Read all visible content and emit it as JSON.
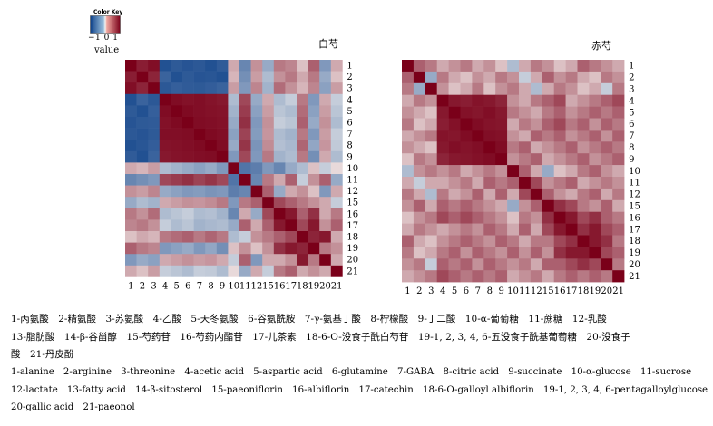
{
  "color_key": {
    "title": "Color Key",
    "ticks": "−1 0 1",
    "label": "value",
    "colors": {
      "low": "#0b3f88",
      "mid": "#f4f1ef",
      "high": "#7a0019"
    }
  },
  "chart_data": [
    {
      "type": "heatmap",
      "title": "白芍",
      "row_labels": [
        "1",
        "2",
        "3",
        "4",
        "5",
        "6",
        "7",
        "8",
        "9",
        "10",
        "11",
        "12",
        "15",
        "16",
        "17",
        "18",
        "19",
        "20",
        "21"
      ],
      "col_labels": [
        "1",
        "2",
        "3",
        "4",
        "5",
        "6",
        "7",
        "8",
        "9",
        "10",
        "11",
        "12",
        "15",
        "16",
        "17",
        "18",
        "19",
        "20",
        "21"
      ],
      "value_range": [
        -1,
        1
      ],
      "values": [
        [
          1,
          0.88,
          0.94,
          -0.9,
          -0.85,
          -0.88,
          -0.86,
          -0.9,
          -0.84,
          0.3,
          -0.6,
          0.4,
          -0.4,
          0.5,
          0.45,
          0.2,
          0.6,
          -0.5,
          0.3
        ],
        [
          0.88,
          1,
          0.85,
          -0.8,
          -0.9,
          -0.85,
          -0.88,
          -0.87,
          -0.9,
          0.25,
          -0.55,
          0.35,
          -0.3,
          0.4,
          0.5,
          0.3,
          0.5,
          -0.4,
          0.2
        ],
        [
          0.94,
          0.85,
          1,
          -0.86,
          -0.82,
          -0.84,
          -0.85,
          -0.83,
          -0.8,
          0.35,
          -0.5,
          0.45,
          -0.35,
          0.55,
          0.4,
          0.25,
          0.45,
          -0.45,
          0.35
        ],
        [
          -0.9,
          -0.8,
          -0.86,
          1,
          0.95,
          0.93,
          0.94,
          0.92,
          0.9,
          -0.3,
          0.7,
          -0.4,
          0.3,
          -0.3,
          -0.2,
          0.5,
          -0.5,
          0.3,
          -0.2
        ],
        [
          -0.85,
          -0.9,
          -0.82,
          0.95,
          1,
          0.96,
          0.94,
          0.93,
          0.92,
          -0.35,
          0.75,
          -0.45,
          0.35,
          -0.25,
          -0.3,
          0.55,
          -0.45,
          0.35,
          -0.25
        ],
        [
          -0.88,
          -0.85,
          -0.84,
          0.93,
          0.96,
          1,
          0.95,
          0.94,
          0.93,
          -0.4,
          0.8,
          -0.5,
          0.4,
          -0.2,
          -0.25,
          0.6,
          -0.4,
          0.4,
          -0.3
        ],
        [
          -0.86,
          -0.88,
          -0.85,
          0.94,
          0.94,
          0.95,
          1,
          0.96,
          0.94,
          -0.45,
          0.72,
          -0.48,
          0.38,
          -0.3,
          -0.35,
          0.5,
          -0.5,
          0.35,
          -0.2
        ],
        [
          -0.9,
          -0.87,
          -0.83,
          0.92,
          0.93,
          0.94,
          0.96,
          1,
          0.95,
          -0.4,
          0.78,
          -0.52,
          0.42,
          -0.28,
          -0.32,
          0.58,
          -0.42,
          0.38,
          -0.22
        ],
        [
          -0.84,
          -0.9,
          -0.8,
          0.9,
          0.92,
          0.93,
          0.94,
          0.95,
          1,
          -0.5,
          0.7,
          -0.5,
          0.5,
          -0.35,
          -0.3,
          0.5,
          -0.55,
          0.3,
          -0.3
        ],
        [
          0.3,
          0.25,
          0.35,
          -0.3,
          -0.35,
          -0.4,
          -0.45,
          -0.4,
          -0.5,
          1,
          -0.7,
          -0.65,
          -0.5,
          -0.6,
          -0.4,
          -0.3,
          0.2,
          -0.2,
          0.1
        ],
        [
          -0.6,
          -0.55,
          -0.5,
          0.7,
          0.75,
          0.8,
          0.72,
          0.78,
          0.7,
          -0.7,
          1,
          -0.6,
          0.5,
          0.3,
          0.6,
          -0.2,
          0.4,
          0.6,
          -0.4
        ],
        [
          0.4,
          0.35,
          0.45,
          -0.4,
          -0.45,
          -0.5,
          -0.48,
          -0.52,
          -0.5,
          -0.65,
          -0.6,
          1,
          0.6,
          -0.4,
          0.3,
          0.4,
          0.2,
          -0.5,
          0.3
        ],
        [
          -0.4,
          -0.3,
          -0.35,
          0.3,
          0.35,
          0.4,
          0.38,
          0.42,
          0.5,
          -0.5,
          0.5,
          0.6,
          1,
          0.7,
          0.6,
          0.5,
          0.4,
          0.3,
          -0.2
        ],
        [
          0.5,
          0.4,
          0.55,
          -0.3,
          -0.25,
          -0.2,
          -0.3,
          -0.28,
          -0.35,
          -0.6,
          0.3,
          -0.4,
          0.7,
          1,
          0.9,
          0.6,
          0.8,
          0.3,
          0.5
        ],
        [
          0.45,
          0.5,
          0.4,
          -0.2,
          -0.3,
          -0.25,
          -0.35,
          -0.32,
          -0.3,
          -0.4,
          0.6,
          0.3,
          0.6,
          0.9,
          1,
          0.7,
          0.9,
          0.4,
          0.6
        ],
        [
          0.2,
          0.3,
          0.25,
          0.5,
          0.55,
          0.6,
          0.5,
          0.58,
          0.5,
          -0.3,
          -0.2,
          0.4,
          0.5,
          0.6,
          0.7,
          1,
          0.85,
          0.9,
          0.3
        ],
        [
          0.6,
          0.5,
          0.45,
          -0.5,
          -0.45,
          -0.4,
          -0.5,
          -0.42,
          -0.55,
          0.2,
          0.4,
          0.2,
          0.4,
          0.8,
          0.9,
          0.85,
          1,
          0.5,
          0.4
        ],
        [
          -0.5,
          -0.4,
          -0.45,
          0.3,
          0.35,
          0.4,
          0.35,
          0.38,
          0.3,
          -0.2,
          0.6,
          -0.5,
          0.3,
          0.3,
          0.4,
          0.9,
          0.5,
          1,
          0.3
        ],
        [
          0.3,
          0.2,
          0.35,
          -0.2,
          -0.25,
          -0.3,
          -0.2,
          -0.22,
          -0.3,
          0.1,
          -0.4,
          0.3,
          -0.2,
          0.5,
          0.6,
          0.3,
          0.4,
          0.3,
          1
        ]
      ]
    },
    {
      "type": "heatmap",
      "title": "赤芍",
      "row_labels": [
        "1",
        "2",
        "3",
        "4",
        "5",
        "6",
        "7",
        "8",
        "9",
        "10",
        "11",
        "12",
        "15",
        "16",
        "17",
        "18",
        "19",
        "20",
        "21"
      ],
      "col_labels": [
        "1",
        "2",
        "3",
        "4",
        "5",
        "6",
        "7",
        "8",
        "9",
        "10",
        "11",
        "12",
        "15",
        "16",
        "17",
        "18",
        "19",
        "20",
        "21"
      ],
      "value_range": [
        -1,
        1
      ],
      "values": [
        [
          1,
          0.6,
          0.5,
          0.3,
          0.4,
          0.5,
          0.3,
          0.4,
          0.2,
          -0.3,
          0.3,
          0.5,
          0.4,
          0.2,
          0.3,
          0.6,
          0.5,
          0.4,
          0.3
        ],
        [
          0.6,
          1,
          -0.4,
          0.5,
          0.3,
          0.2,
          0.4,
          0.3,
          0.5,
          0.4,
          -0.2,
          0.3,
          0.6,
          0.4,
          0.5,
          0.3,
          0.2,
          0.5,
          0.4
        ],
        [
          0.5,
          -0.4,
          1,
          0.4,
          0.2,
          0.3,
          0.5,
          0.2,
          0.4,
          0.5,
          0.3,
          -0.3,
          0.3,
          0.5,
          0.4,
          0.2,
          0.3,
          -0.2,
          0.5
        ],
        [
          0.3,
          0.5,
          0.4,
          1,
          0.9,
          0.88,
          0.92,
          0.9,
          0.85,
          0.4,
          0.3,
          0.5,
          0.6,
          0.7,
          0.3,
          0.4,
          0.5,
          0.6,
          0.7
        ],
        [
          0.4,
          0.3,
          0.2,
          0.9,
          1,
          0.93,
          0.91,
          0.94,
          0.9,
          0.5,
          0.4,
          0.3,
          0.5,
          0.6,
          0.4,
          0.5,
          0.6,
          0.5,
          0.6
        ],
        [
          0.5,
          0.2,
          0.3,
          0.88,
          0.93,
          1,
          0.95,
          0.92,
          0.91,
          0.3,
          0.5,
          0.4,
          0.6,
          0.7,
          0.5,
          0.6,
          0.4,
          0.6,
          0.5
        ],
        [
          0.3,
          0.4,
          0.5,
          0.92,
          0.91,
          0.95,
          1,
          0.94,
          0.93,
          0.4,
          0.3,
          0.6,
          0.5,
          0.6,
          0.4,
          0.5,
          0.6,
          0.4,
          0.6
        ],
        [
          0.4,
          0.3,
          0.2,
          0.9,
          0.94,
          0.92,
          0.94,
          1,
          0.95,
          0.5,
          0.6,
          0.3,
          0.4,
          0.5,
          0.6,
          0.4,
          0.5,
          0.6,
          0.5
        ],
        [
          0.2,
          0.5,
          0.4,
          0.85,
          0.9,
          0.91,
          0.93,
          0.95,
          1,
          0.4,
          0.5,
          0.6,
          0.3,
          0.4,
          0.5,
          0.6,
          0.4,
          0.5,
          0.6
        ],
        [
          -0.3,
          0.4,
          0.5,
          0.4,
          0.5,
          0.3,
          0.4,
          0.5,
          0.4,
          1,
          0.6,
          0.3,
          -0.4,
          0.2,
          0.3,
          0.5,
          0.6,
          0.4,
          0.3
        ],
        [
          0.3,
          -0.2,
          0.3,
          0.3,
          0.4,
          0.5,
          0.3,
          0.6,
          0.5,
          0.6,
          1,
          0.7,
          0.4,
          0.5,
          0.6,
          0.3,
          0.4,
          0.5,
          0.4
        ],
        [
          0.5,
          0.3,
          -0.3,
          0.5,
          0.3,
          0.4,
          0.6,
          0.3,
          0.6,
          0.3,
          0.7,
          1,
          0.6,
          0.4,
          0.3,
          0.5,
          0.6,
          0.3,
          0.5
        ],
        [
          0.4,
          0.6,
          0.3,
          0.6,
          0.5,
          0.6,
          0.5,
          0.4,
          0.3,
          -0.4,
          0.4,
          0.6,
          1,
          0.8,
          0.7,
          0.5,
          0.4,
          0.6,
          0.3
        ],
        [
          0.2,
          0.4,
          0.5,
          0.7,
          0.6,
          0.7,
          0.6,
          0.5,
          0.4,
          0.2,
          0.5,
          0.4,
          0.8,
          1,
          0.9,
          0.7,
          0.8,
          0.6,
          0.5
        ],
        [
          0.3,
          0.5,
          0.4,
          0.3,
          0.4,
          0.5,
          0.4,
          0.6,
          0.5,
          0.3,
          0.6,
          0.3,
          0.7,
          0.9,
          1,
          0.8,
          0.9,
          0.7,
          0.6
        ],
        [
          0.6,
          0.3,
          0.2,
          0.4,
          0.5,
          0.6,
          0.5,
          0.4,
          0.6,
          0.5,
          0.3,
          0.5,
          0.5,
          0.7,
          0.8,
          1,
          0.9,
          0.8,
          0.5
        ],
        [
          0.5,
          0.2,
          0.3,
          0.5,
          0.6,
          0.4,
          0.6,
          0.5,
          0.4,
          0.6,
          0.4,
          0.6,
          0.4,
          0.8,
          0.9,
          0.9,
          1,
          0.7,
          0.6
        ],
        [
          0.4,
          0.5,
          -0.2,
          0.6,
          0.5,
          0.6,
          0.4,
          0.6,
          0.5,
          0.4,
          0.5,
          0.3,
          0.6,
          0.6,
          0.7,
          0.8,
          0.7,
          1,
          0.5
        ],
        [
          0.3,
          0.4,
          0.5,
          0.7,
          0.6,
          0.5,
          0.6,
          0.5,
          0.6,
          0.3,
          0.4,
          0.5,
          0.3,
          0.5,
          0.6,
          0.5,
          0.6,
          0.5,
          1
        ]
      ]
    }
  ],
  "legend": {
    "chinese": [
      "1-丙氨酸　2-精氨酸　3-苏氨酸　4-乙酸　5-天冬氨酸　6-谷氨酰胺　7-γ-氨基丁酸　8-柠檬酸　9-丁二酸　10-α-葡萄糖　11-蔗糖　12-乳酸",
      "13-脂肪酸　14-β-谷甾醇　15-芍药苷　16-芍药内酯苷　17-儿茶素　18-6-O-没食子酰白芍苷　19-1, 2, 3, 4, 6-五没食子酰基葡萄糖　20-没食子",
      "酸　21-丹皮酚"
    ],
    "english": [
      "1-alanine　2-arginine　3-threonine　4-acetic acid　5-aspartic acid　6-glutamine　7-GABA　8-citric acid　9-succinate　10-α-glucose　11-sucrose",
      "12-lactate　13-fatty acid　14-β-sitosterol　15-paeoniflorin　16-albiflorin　17-catechin　18-6-O-galloyl albiflorin　19-1, 2, 3, 4, 6-pentagalloylglucose",
      "20-gallic acid　21-paeonol"
    ]
  }
}
